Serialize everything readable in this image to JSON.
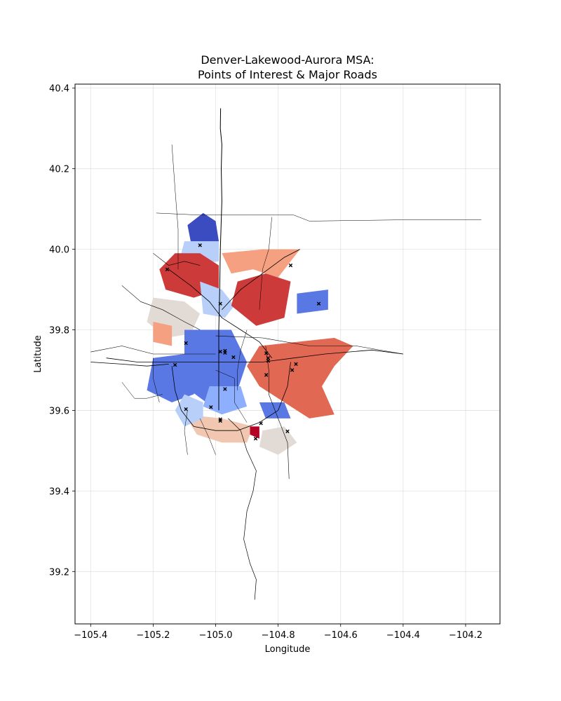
{
  "chart_data": {
    "type": "map",
    "title_line1": "Denver-Lakewood-Aurora MSA:",
    "title_line2": "Points of Interest & Major Roads",
    "xlabel": "Longitude",
    "ylabel": "Latitude",
    "xlim": [
      -105.45,
      -104.09
    ],
    "ylim": [
      39.07,
      40.41
    ],
    "xticks": [
      -105.4,
      -105.2,
      -105.0,
      -104.8,
      -104.6,
      -104.4,
      -104.2
    ],
    "xtick_labels": [
      "−105.4",
      "−105.2",
      "−105.0",
      "−104.8",
      "−104.6",
      "−104.4",
      "−104.2"
    ],
    "yticks": [
      39.2,
      39.4,
      39.6,
      39.8,
      40.0,
      40.2,
      40.4
    ],
    "ytick_labels": [
      "39.2",
      "39.4",
      "39.6",
      "39.8",
      "40.0",
      "40.2",
      "40.4"
    ],
    "grid": true,
    "colormap": "coolwarm",
    "colors": {
      "dark_blue": "#3b4cc0",
      "blue": "#5a78e4",
      "mid_blue": "#8daffd",
      "light_blue": "#b8d0f9",
      "neutral": "#e2dad5",
      "light_red": "#f2c7b1",
      "salmon": "#f5a081",
      "red_orange": "#e16852",
      "red": "#cc3a3a",
      "dark_red": "#b40426"
    },
    "regions": [
      {
        "color": "dark_blue",
        "poly": [
          [
            -105.09,
            40.06
          ],
          [
            -105.04,
            40.09
          ],
          [
            -105.0,
            40.07
          ],
          [
            -104.99,
            40.02
          ],
          [
            -105.03,
            40.0
          ],
          [
            -105.08,
            40.02
          ]
        ]
      },
      {
        "color": "light_blue",
        "poly": [
          [
            -105.1,
            40.02
          ],
          [
            -104.99,
            40.02
          ],
          [
            -104.99,
            39.97
          ],
          [
            -105.08,
            39.96
          ],
          [
            -105.11,
            39.99
          ]
        ]
      },
      {
        "color": "salmon",
        "poly": [
          [
            -104.98,
            39.99
          ],
          [
            -104.85,
            40.0
          ],
          [
            -104.73,
            40.0
          ],
          [
            -104.8,
            39.93
          ],
          [
            -104.88,
            39.95
          ],
          [
            -104.95,
            39.94
          ]
        ]
      },
      {
        "color": "red",
        "poly": [
          [
            -105.13,
            39.99
          ],
          [
            -105.05,
            39.99
          ],
          [
            -104.99,
            39.96
          ],
          [
            -104.99,
            39.9
          ],
          [
            -105.07,
            39.88
          ],
          [
            -105.16,
            39.9
          ],
          [
            -105.18,
            39.95
          ]
        ]
      },
      {
        "color": "light_blue",
        "poly": [
          [
            -105.05,
            39.92
          ],
          [
            -104.98,
            39.9
          ],
          [
            -104.94,
            39.86
          ],
          [
            -104.97,
            39.83
          ],
          [
            -105.04,
            39.84
          ]
        ]
      },
      {
        "color": "red",
        "poly": [
          [
            -104.93,
            39.92
          ],
          [
            -104.84,
            39.94
          ],
          [
            -104.76,
            39.92
          ],
          [
            -104.78,
            39.83
          ],
          [
            -104.87,
            39.81
          ],
          [
            -104.95,
            39.86
          ]
        ]
      },
      {
        "color": "blue",
        "poly": [
          [
            -104.74,
            39.89
          ],
          [
            -104.64,
            39.9
          ],
          [
            -104.64,
            39.85
          ],
          [
            -104.74,
            39.84
          ]
        ]
      },
      {
        "color": "neutral",
        "poly": [
          [
            -105.2,
            39.88
          ],
          [
            -105.1,
            39.87
          ],
          [
            -105.05,
            39.84
          ],
          [
            -105.08,
            39.79
          ],
          [
            -105.16,
            39.78
          ],
          [
            -105.22,
            39.82
          ]
        ]
      },
      {
        "color": "salmon",
        "poly": [
          [
            -105.2,
            39.82
          ],
          [
            -105.14,
            39.81
          ],
          [
            -105.14,
            39.76
          ],
          [
            -105.2,
            39.77
          ]
        ]
      },
      {
        "color": "blue",
        "poly": [
          [
            -105.2,
            39.73
          ],
          [
            -105.1,
            39.74
          ],
          [
            -105.04,
            39.7
          ],
          [
            -105.07,
            39.64
          ],
          [
            -105.14,
            39.62
          ],
          [
            -105.22,
            39.65
          ]
        ]
      },
      {
        "color": "blue",
        "poly": [
          [
            -105.1,
            39.8
          ],
          [
            -104.95,
            39.8
          ],
          [
            -104.9,
            39.72
          ],
          [
            -104.93,
            39.65
          ],
          [
            -105.03,
            39.62
          ],
          [
            -105.1,
            39.66
          ]
        ]
      },
      {
        "color": "mid_blue",
        "poly": [
          [
            -105.02,
            39.66
          ],
          [
            -104.92,
            39.66
          ],
          [
            -104.9,
            39.61
          ],
          [
            -104.98,
            39.59
          ],
          [
            -105.04,
            39.61
          ]
        ]
      },
      {
        "color": "red_orange",
        "poly": [
          [
            -104.86,
            39.76
          ],
          [
            -104.74,
            39.77
          ],
          [
            -104.62,
            39.78
          ],
          [
            -104.56,
            39.76
          ],
          [
            -104.62,
            39.71
          ],
          [
            -104.66,
            39.66
          ],
          [
            -104.62,
            39.59
          ],
          [
            -104.7,
            39.58
          ],
          [
            -104.78,
            39.62
          ],
          [
            -104.86,
            39.66
          ],
          [
            -104.9,
            39.71
          ]
        ]
      },
      {
        "color": "blue",
        "poly": [
          [
            -104.86,
            39.62
          ],
          [
            -104.78,
            39.62
          ],
          [
            -104.76,
            39.58
          ],
          [
            -104.84,
            39.58
          ]
        ]
      },
      {
        "color": "light_red",
        "poly": [
          [
            -105.1,
            39.59
          ],
          [
            -104.98,
            39.58
          ],
          [
            -104.88,
            39.56
          ],
          [
            -104.9,
            39.52
          ],
          [
            -104.98,
            39.52
          ],
          [
            -105.06,
            39.54
          ]
        ]
      },
      {
        "color": "light_blue",
        "poly": [
          [
            -105.1,
            39.64
          ],
          [
            -105.04,
            39.62
          ],
          [
            -105.04,
            39.58
          ],
          [
            -105.1,
            39.56
          ],
          [
            -105.13,
            39.6
          ]
        ]
      },
      {
        "color": "neutral",
        "poly": [
          [
            -104.85,
            39.55
          ],
          [
            -104.78,
            39.56
          ],
          [
            -104.74,
            39.52
          ],
          [
            -104.8,
            39.49
          ],
          [
            -104.86,
            39.51
          ]
        ]
      },
      {
        "color": "dark_red",
        "poly": [
          [
            -104.89,
            39.56
          ],
          [
            -104.86,
            39.56
          ],
          [
            -104.86,
            39.53
          ],
          [
            -104.89,
            39.54
          ]
        ]
      }
    ],
    "roads": [
      {
        "width": 1.0,
        "pts": [
          [
            -104.984,
            40.35
          ],
          [
            -104.985,
            40.3
          ],
          [
            -104.98,
            40.26
          ],
          [
            -104.982,
            40.2
          ],
          [
            -104.98,
            40.12
          ],
          [
            -104.985,
            40.0
          ],
          [
            -104.987,
            39.9
          ],
          [
            -104.99,
            39.8
          ],
          [
            -104.99,
            39.6
          ]
        ]
      },
      {
        "width": 0.7,
        "pts": [
          [
            -104.96,
            39.58
          ],
          [
            -104.92,
            39.55
          ],
          [
            -104.9,
            39.5
          ],
          [
            -104.87,
            39.45
          ],
          [
            -104.88,
            39.4
          ],
          [
            -104.9,
            39.35
          ],
          [
            -104.91,
            39.28
          ],
          [
            -104.89,
            39.22
          ],
          [
            -104.87,
            39.18
          ],
          [
            -104.875,
            39.13
          ]
        ]
      },
      {
        "width": 0.8,
        "pts": [
          [
            -105.35,
            39.73
          ],
          [
            -105.25,
            39.72
          ],
          [
            -105.15,
            39.72
          ],
          [
            -105.05,
            39.72
          ],
          [
            -104.95,
            39.72
          ],
          [
            -104.85,
            39.72
          ],
          [
            -104.75,
            39.73
          ],
          [
            -104.65,
            39.74
          ],
          [
            -104.5,
            39.75
          ],
          [
            -104.4,
            39.74
          ]
        ]
      },
      {
        "width": 0.6,
        "pts": [
          [
            -105.4,
            39.745
          ],
          [
            -105.3,
            39.76
          ],
          [
            -105.2,
            39.74
          ],
          [
            -105.1,
            39.74
          ],
          [
            -105.0,
            39.74
          ]
        ]
      },
      {
        "width": 0.8,
        "pts": [
          [
            -105.4,
            39.72
          ],
          [
            -105.3,
            39.715
          ],
          [
            -105.22,
            39.71
          ],
          [
            -105.15,
            39.715
          ]
        ]
      },
      {
        "width": 0.6,
        "pts": [
          [
            -105.0,
            39.785
          ],
          [
            -104.85,
            39.78
          ],
          [
            -104.7,
            39.76
          ],
          [
            -104.55,
            39.76
          ],
          [
            -104.4,
            39.74
          ]
        ]
      },
      {
        "width": 0.8,
        "pts": [
          [
            -105.15,
            39.95
          ],
          [
            -105.08,
            39.91
          ],
          [
            -105.02,
            39.87
          ],
          [
            -104.98,
            39.83
          ],
          [
            -104.92,
            39.8
          ],
          [
            -104.86,
            39.77
          ],
          [
            -104.82,
            39.73
          ]
        ]
      },
      {
        "width": 0.8,
        "pts": [
          [
            -104.98,
            39.85
          ],
          [
            -104.92,
            39.9
          ],
          [
            -104.85,
            39.94
          ],
          [
            -104.78,
            39.98
          ],
          [
            -104.73,
            40.0
          ]
        ]
      },
      {
        "width": 0.6,
        "pts": [
          [
            -105.3,
            39.91
          ],
          [
            -105.24,
            39.87
          ],
          [
            -105.17,
            39.85
          ],
          [
            -105.1,
            39.82
          ],
          [
            -105.05,
            39.8
          ]
        ]
      },
      {
        "width": 0.6,
        "pts": [
          [
            -105.2,
            39.99
          ],
          [
            -105.15,
            39.96
          ],
          [
            -105.1,
            39.97
          ],
          [
            -105.05,
            39.96
          ]
        ]
      },
      {
        "width": 0.8,
        "pts": [
          [
            -105.14,
            39.71
          ],
          [
            -105.13,
            39.65
          ],
          [
            -105.11,
            39.6
          ],
          [
            -105.07,
            39.56
          ],
          [
            -105.0,
            39.55
          ],
          [
            -104.93,
            39.55
          ],
          [
            -104.86,
            39.57
          ],
          [
            -104.8,
            39.6
          ],
          [
            -104.77,
            39.66
          ],
          [
            -104.76,
            39.72
          ]
        ]
      },
      {
        "width": 0.5,
        "pts": [
          [
            -105.3,
            39.67
          ],
          [
            -105.26,
            39.63
          ],
          [
            -105.22,
            39.63
          ],
          [
            -105.17,
            39.64
          ]
        ]
      },
      {
        "width": 0.5,
        "pts": [
          [
            -104.82,
            40.08
          ],
          [
            -104.83,
            40.0
          ],
          [
            -104.85,
            39.95
          ],
          [
            -104.86,
            39.85
          ]
        ]
      },
      {
        "width": 0.5,
        "pts": [
          [
            -105.14,
            40.26
          ],
          [
            -105.13,
            40.15
          ],
          [
            -105.12,
            40.05
          ],
          [
            -105.12,
            39.95
          ]
        ]
      },
      {
        "width": 0.5,
        "pts": [
          [
            -105.19,
            40.09
          ],
          [
            -105.05,
            40.085
          ],
          [
            -104.9,
            40.085
          ],
          [
            -104.75,
            40.085
          ],
          [
            -104.7,
            40.07
          ],
          [
            -104.4,
            40.073
          ],
          [
            -104.15,
            40.073
          ]
        ]
      },
      {
        "width": 0.6,
        "pts": [
          [
            -104.84,
            39.76
          ],
          [
            -104.83,
            39.7
          ],
          [
            -104.83,
            39.64
          ],
          [
            -104.8,
            39.58
          ],
          [
            -104.77,
            39.52
          ],
          [
            -104.765,
            39.43
          ]
        ]
      },
      {
        "width": 0.5,
        "pts": [
          [
            -105.09,
            39.6
          ],
          [
            -105.1,
            39.55
          ],
          [
            -105.09,
            39.49
          ]
        ]
      },
      {
        "width": 0.5,
        "pts": [
          [
            -105.05,
            39.58
          ],
          [
            -105.02,
            39.53
          ],
          [
            -105.0,
            39.49
          ]
        ]
      },
      {
        "width": 0.5,
        "pts": [
          [
            -105.0,
            39.7
          ],
          [
            -104.94,
            39.68
          ],
          [
            -104.94,
            39.62
          ],
          [
            -104.9,
            39.57
          ]
        ]
      },
      {
        "width": 0.5,
        "pts": [
          [
            -105.2,
            39.73
          ],
          [
            -105.2,
            39.68
          ],
          [
            -105.18,
            39.62
          ]
        ]
      },
      {
        "width": 0.5,
        "pts": [
          [
            -104.9,
            39.8
          ],
          [
            -104.92,
            39.75
          ],
          [
            -104.93,
            39.7
          ],
          [
            -104.93,
            39.65
          ]
        ]
      }
    ],
    "pois": [
      {
        "x": -105.155,
        "y": 39.95
      },
      {
        "x": -105.05,
        "y": 40.01
      },
      {
        "x": -104.76,
        "y": 39.96
      },
      {
        "x": -104.67,
        "y": 39.865
      },
      {
        "x": -104.985,
        "y": 39.865
      },
      {
        "x": -105.095,
        "y": 39.767
      },
      {
        "x": -104.985,
        "y": 39.746
      },
      {
        "x": -104.97,
        "y": 39.748
      },
      {
        "x": -104.97,
        "y": 39.743
      },
      {
        "x": -104.943,
        "y": 39.732
      },
      {
        "x": -104.838,
        "y": 39.742
      },
      {
        "x": -104.832,
        "y": 39.73
      },
      {
        "x": -104.832,
        "y": 39.723
      },
      {
        "x": -104.743,
        "y": 39.715
      },
      {
        "x": -104.755,
        "y": 39.7
      },
      {
        "x": -105.13,
        "y": 39.713
      },
      {
        "x": -104.838,
        "y": 39.688
      },
      {
        "x": -104.97,
        "y": 39.653
      },
      {
        "x": -105.095,
        "y": 39.603
      },
      {
        "x": -105.015,
        "y": 39.608
      },
      {
        "x": -104.985,
        "y": 39.578
      },
      {
        "x": -104.985,
        "y": 39.574
      },
      {
        "x": -104.855,
        "y": 39.568
      },
      {
        "x": -104.77,
        "y": 39.548
      },
      {
        "x": -104.872,
        "y": 39.53
      }
    ]
  }
}
